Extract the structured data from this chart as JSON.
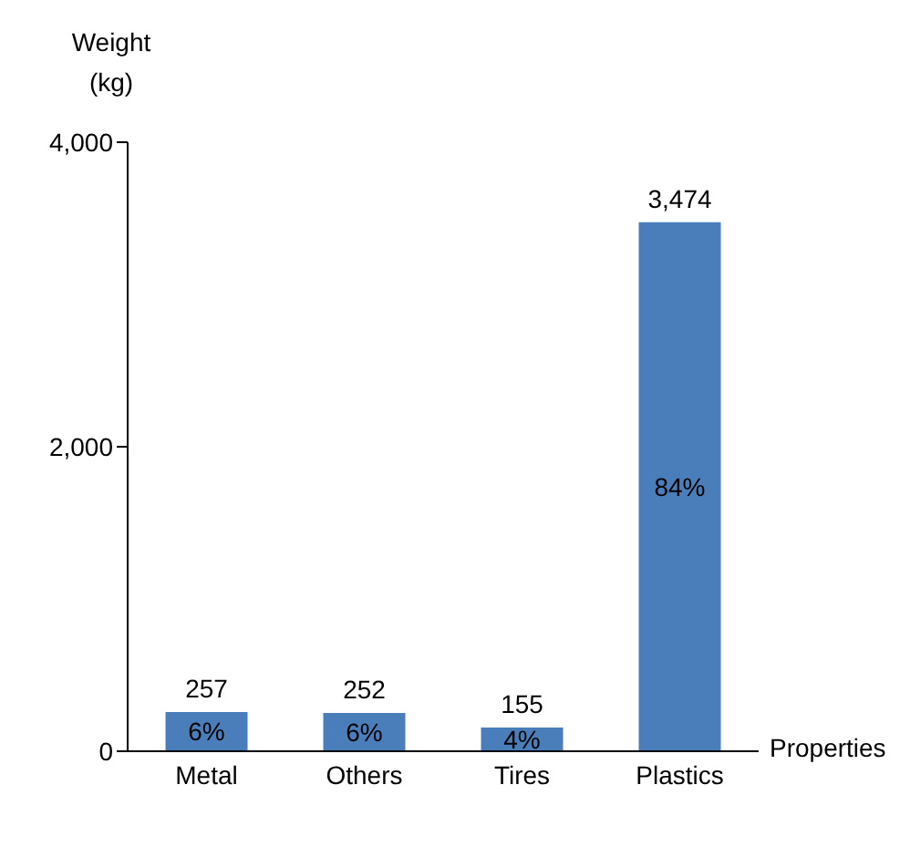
{
  "chart_data": {
    "type": "bar",
    "ylabel": "Weight\n(kg)",
    "xlabel": "Properties",
    "categories": [
      "Metal",
      "Others",
      "Tires",
      "Plastics"
    ],
    "values": [
      257,
      252,
      155,
      3474
    ],
    "value_labels": [
      "257",
      "252",
      "155",
      "3,474"
    ],
    "color": "#4a7ebb",
    "ylim": [
      0,
      4000
    ],
    "yticks": [
      0,
      {
        "value": 2000,
        "label": "2,000"
      },
      {
        "value": 4000,
        "label": "4,000"
      }
    ],
    "grid": false,
    "legend": false,
    "annotations": [
      "6%",
      "6%",
      "4%",
      "84%"
    ]
  }
}
